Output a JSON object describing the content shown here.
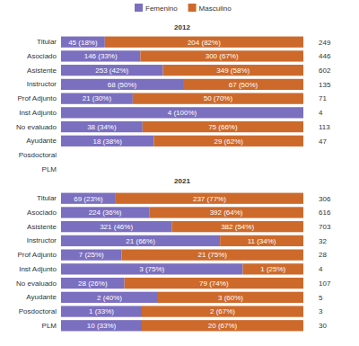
{
  "chart_data": [
    {
      "type": "bar",
      "title": "2012",
      "orientation": "horizontal",
      "stacked": true,
      "data_labels": true,
      "tick_labels": "y",
      "legend": "top",
      "categories": [
        "Titular",
        "Asociado",
        "Asistente",
        "Instructor",
        "Prof Adjunto",
        "Inst Adjunto",
        "No evaluado",
        "Ayudante",
        "Posdoctoral",
        "PLM"
      ],
      "series": [
        {
          "name": "Femenino",
          "color": "#7b6fbf",
          "values": [
            45,
            146,
            253,
            68,
            21,
            4,
            38,
            18,
            null,
            null
          ],
          "value_labels": [
            "45 (18%)",
            "146 (33%)",
            "253 (42%)",
            "68 (50%)",
            "21 (30%)",
            "4 (100%)",
            "38 (34%)",
            "18 (38%)",
            null,
            null
          ]
        },
        {
          "name": "Masculino",
          "color": "#cd6a2b",
          "values": [
            204,
            300,
            349,
            67,
            50,
            null,
            75,
            29,
            null,
            null
          ],
          "value_labels": [
            "204 (82%)",
            "300 (67%)",
            "349 (58%)",
            "67 (50%)",
            "50 (70%)",
            null,
            "75 (66%)",
            "29 (62%)",
            null,
            null
          ]
        }
      ],
      "totals": [
        249,
        446,
        602,
        135,
        71,
        4,
        113,
        47,
        null,
        null
      ]
    },
    {
      "type": "bar",
      "title": "2021",
      "orientation": "horizontal",
      "stacked": true,
      "data_labels": true,
      "tick_labels": "y",
      "categories": [
        "Titular",
        "Asociado",
        "Asistente",
        "Instructor",
        "Prof Adjunto",
        "Inst Adjunto",
        "No evaluado",
        "Ayudante",
        "Posdoctoral",
        "PLM"
      ],
      "series": [
        {
          "name": "Femenino",
          "color": "#7b6fbf",
          "values": [
            69,
            224,
            321,
            21,
            7,
            3,
            28,
            2,
            1,
            10
          ],
          "value_labels": [
            "69 (23%)",
            "224 (36%)",
            "321 (46%)",
            "21 (66%)",
            "7 (25%)",
            "3 (75%)",
            "28 (26%)",
            "2 (40%)",
            "1 (33%)",
            "10 (33%)"
          ]
        },
        {
          "name": "Masculino",
          "color": "#cd6a2b",
          "values": [
            237,
            392,
            382,
            11,
            21,
            1,
            79,
            3,
            2,
            20
          ],
          "value_labels": [
            "237 (77%)",
            "392 (64%)",
            "382 (54%)",
            "11 (34%)",
            "21 (75%)",
            "1 (25%)",
            "79 (74%)",
            "3 (60%)",
            "2 (67%)",
            "20 (67%)"
          ]
        }
      ],
      "totals": [
        306,
        616,
        703,
        32,
        28,
        4,
        107,
        5,
        3,
        30
      ]
    }
  ]
}
